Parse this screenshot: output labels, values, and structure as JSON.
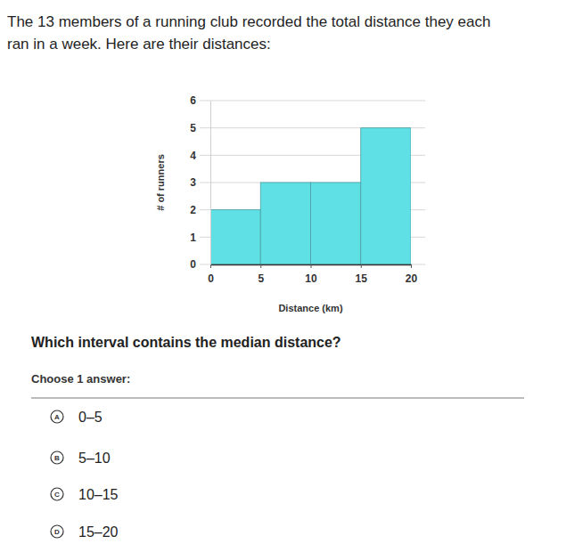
{
  "chart_data": {
    "type": "histogram",
    "bins": [
      0,
      5,
      10,
      15,
      20
    ],
    "values": [
      2,
      3,
      3,
      5
    ],
    "color": "#5fe0e4",
    "xlabel": "Distance (km)",
    "ylabel": "# of runners",
    "xlim": [
      0,
      20
    ],
    "xticks": [
      0,
      5,
      10,
      15,
      20
    ],
    "ylim": [
      0,
      6
    ],
    "yticks": [
      0,
      1,
      2,
      3,
      4,
      5,
      6
    ],
    "grid": true
  },
  "problem": {
    "intro": [
      "The 13 members of a running club recorded the total distance they each",
      "ran in a week. Here are their distances:"
    ],
    "question": "Which interval contains the median distance?",
    "instruction": "Choose 1 answer:",
    "choices": [
      {
        "letter": "A",
        "text": "0–5"
      },
      {
        "letter": "B",
        "text": "5–10"
      },
      {
        "letter": "C",
        "text": "10–15"
      },
      {
        "letter": "D",
        "text": "15–20"
      }
    ]
  }
}
